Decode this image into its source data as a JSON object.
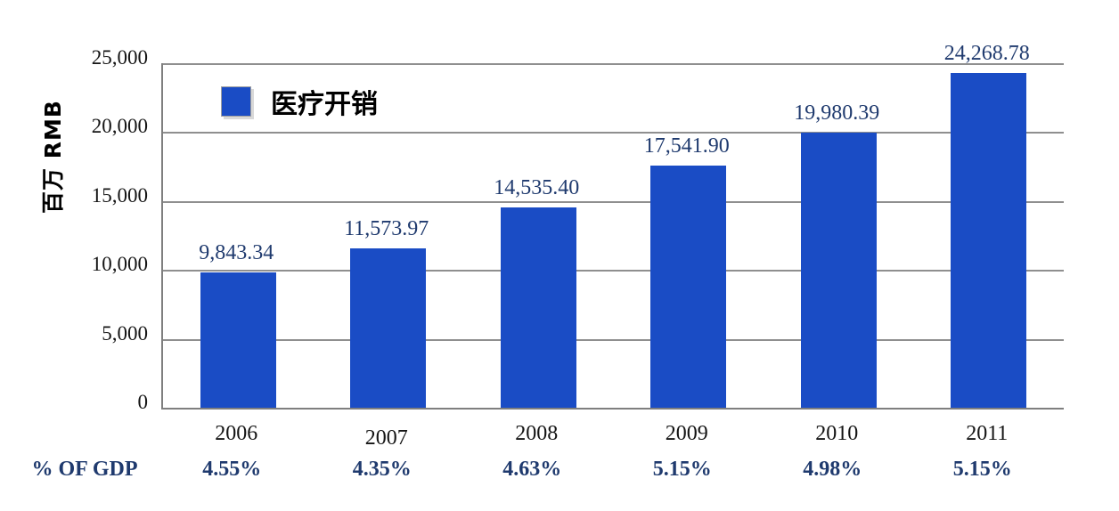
{
  "chart_data": {
    "type": "bar",
    "title": "",
    "ylabel": "百万 RMB",
    "xlabel": "",
    "series_name": "医疗开销",
    "legend_position": "top-left-inside",
    "grid": true,
    "categories": [
      "2006",
      "2007",
      "2008",
      "2009",
      "2010",
      "2011"
    ],
    "values": [
      9843.34,
      11573.97,
      14535.4,
      17541.9,
      19980.39,
      24268.78
    ],
    "value_labels": [
      "9,843.34",
      "11,573.97",
      "14,535.40",
      "17,541.90",
      "19,980.39",
      "24,268.78"
    ],
    "ylim": [
      0,
      25000
    ],
    "y_tick_values": [
      0,
      5000,
      10000,
      15000,
      20000,
      25000
    ],
    "y_tick_labels": [
      "0",
      "5,000",
      "10,000",
      "15,000",
      "20,000",
      "25,000"
    ],
    "gdp_row": {
      "label": "% OF GDP",
      "values": [
        "4.55%",
        "4.35%",
        "4.63%",
        "5.15%",
        "4.98%",
        "5.15%"
      ]
    },
    "colors": {
      "bar": "#1a4cc5",
      "navy_text": "#1f3a6e",
      "axis_text": "#141414",
      "gridline": "#8f8f8f",
      "axis_line": "#7f7f7f",
      "background": "#ffffff"
    }
  }
}
